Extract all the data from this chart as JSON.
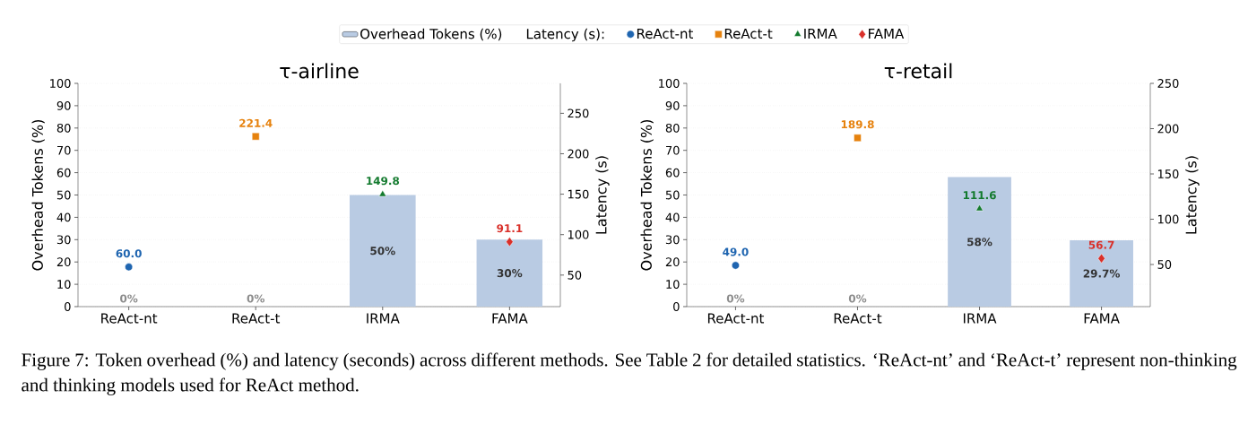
{
  "chart_data": [
    {
      "type": "bar",
      "title": "τ-airline",
      "categories": [
        "ReAct-nt",
        "ReAct-t",
        "IRMA",
        "FAMA"
      ],
      "ylabel": "Overhead Tokens (%)",
      "y2label": "Latency (s)",
      "ylim": [
        0,
        100
      ],
      "yticks": [
        0,
        10,
        20,
        30,
        40,
        50,
        60,
        70,
        80,
        90,
        100
      ],
      "y2lim": [
        11,
        287
      ],
      "y2ticks": [
        50,
        100,
        150,
        200,
        250
      ],
      "grid": "y",
      "legend": "top",
      "legend_title": "Latency (s):",
      "annotations": [
        "Figure 7: Token overhead (%) and latency (seconds) across different methods. See Table 2 for detailed statistics. ‘ReAct-nt’ and ‘ReAct-t’ represent non-thinking and thinking models used for ReAct method."
      ],
      "series": [
        {
          "name": "Overhead Tokens (%)",
          "color": "#b9cbe3",
          "values": [
            0,
            0,
            50,
            30
          ],
          "value_labels": [
            "0%",
            "0%",
            "50%",
            "30%"
          ]
        },
        {
          "name": "ReAct-nt",
          "type": "scatter",
          "axis": "y2",
          "marker": "circle",
          "color": "#1f65b0",
          "values": [
            60.0,
            null,
            null,
            null
          ],
          "value_labels": [
            "60.0",
            null,
            null,
            null
          ]
        },
        {
          "name": "ReAct-t",
          "type": "scatter",
          "axis": "y2",
          "marker": "square",
          "color": "#e6820e",
          "values": [
            null,
            221.4,
            null,
            null
          ],
          "value_labels": [
            null,
            "221.4",
            null,
            null
          ]
        },
        {
          "name": "IRMA",
          "type": "scatter",
          "axis": "y2",
          "marker": "triangle",
          "color": "#137a2e",
          "values": [
            null,
            null,
            149.8,
            null
          ],
          "value_labels": [
            null,
            null,
            "149.8",
            null
          ]
        },
        {
          "name": "FAMA",
          "type": "scatter",
          "axis": "y2",
          "marker": "diamond",
          "color": "#d9302a",
          "values": [
            null,
            null,
            null,
            91.1
          ],
          "value_labels": [
            null,
            null,
            null,
            "91.1"
          ]
        }
      ]
    },
    {
      "type": "bar",
      "title": "τ-retail",
      "categories": [
        "ReAct-nt",
        "ReAct-t",
        "IRMA",
        "FAMA"
      ],
      "ylabel": "Overhead Tokens (%)",
      "y2label": "Latency (s)",
      "ylim": [
        0,
        100
      ],
      "yticks": [
        0,
        10,
        20,
        30,
        40,
        50,
        60,
        70,
        80,
        90,
        100
      ],
      "y2lim": [
        3.5,
        250
      ],
      "y2ticks": [
        50,
        100,
        150,
        200,
        250
      ],
      "grid": "y",
      "series": [
        {
          "color": "#b9cbe3",
          "values": [
            0,
            0,
            58,
            29.7
          ],
          "value_labels": [
            "0%",
            "0%",
            "58%",
            "29.7%"
          ]
        },
        {
          "type": "scatter",
          "axis": "y2",
          "marker": "circle",
          "color": "#1f65b0",
          "values": [
            49.0,
            null,
            null,
            null
          ],
          "value_labels": [
            "49.0",
            null,
            null,
            null
          ]
        },
        {
          "type": "scatter",
          "axis": "y2",
          "marker": "square",
          "color": "#e6820e",
          "values": [
            null,
            189.8,
            null,
            null
          ],
          "value_labels": [
            null,
            "189.8",
            null,
            null
          ]
        },
        {
          "type": "scatter",
          "axis": "y2",
          "marker": "triangle",
          "color": "#137a2e",
          "values": [
            null,
            null,
            111.6,
            null
          ],
          "value_labels": [
            null,
            null,
            "111.6",
            null
          ]
        },
        {
          "type": "scatter",
          "axis": "y2",
          "marker": "diamond",
          "color": "#d9302a",
          "values": [
            null,
            null,
            null,
            56.7
          ],
          "value_labels": [
            null,
            null,
            null,
            "56.7"
          ]
        }
      ]
    }
  ]
}
